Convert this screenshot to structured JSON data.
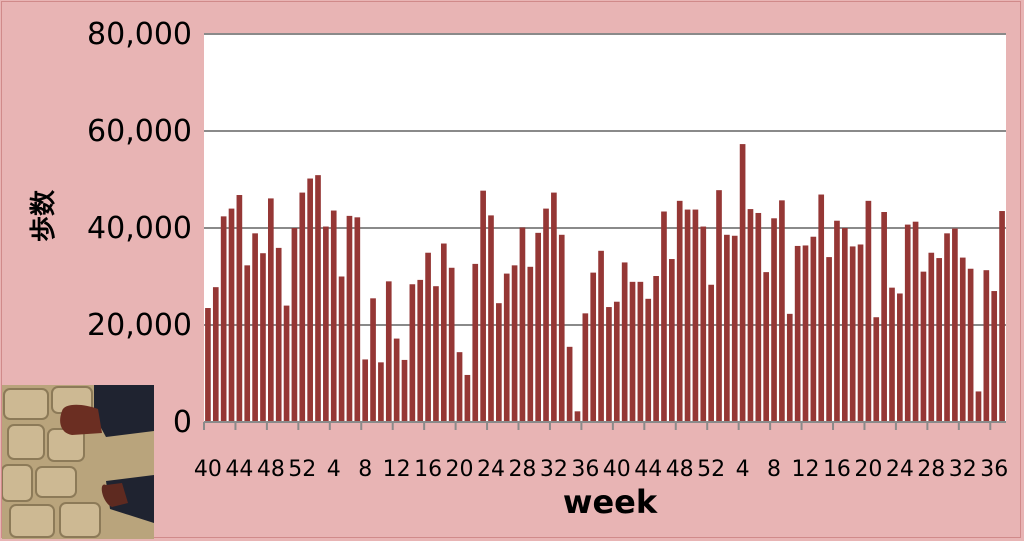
{
  "chart_data": {
    "type": "bar",
    "xlabel": "week",
    "ylabel": "歩数",
    "ylim": [
      0,
      80000
    ],
    "yticks": [
      0,
      20000,
      40000,
      60000,
      80000
    ],
    "ytick_labels": [
      "0",
      "20,000",
      "40,000",
      "60,000",
      "80,000"
    ],
    "xtick_labels": [
      "40",
      "44",
      "48",
      "52",
      "4",
      "8",
      "12",
      "16",
      "20",
      "24",
      "28",
      "32",
      "36",
      "40",
      "44",
      "48",
      "52",
      "4",
      "8",
      "12",
      "16",
      "20",
      "24",
      "28",
      "32",
      "36"
    ],
    "grid": true,
    "bar_color": "#953735",
    "plot_background": "#ffffff",
    "values": [
      23500,
      27800,
      42400,
      44000,
      46800,
      32300,
      38900,
      34800,
      46100,
      35900,
      24000,
      40000,
      47300,
      50200,
      50900,
      40300,
      43600,
      30000,
      42500,
      42200,
      12900,
      25500,
      12300,
      29000,
      17200,
      12800,
      28400,
      29300,
      34900,
      28000,
      36800,
      31800,
      14400,
      9700,
      32600,
      47700,
      42600,
      24500,
      30600,
      32300,
      40100,
      32000,
      39000,
      44000,
      47300,
      38600,
      15500,
      2200,
      22400,
      30800,
      35300,
      23700,
      24800,
      32900,
      28900,
      28900,
      25400,
      30100,
      43400,
      33600,
      45600,
      43800,
      43800,
      40300,
      28300,
      47800,
      38600,
      38400,
      57300,
      43900,
      43100,
      30900,
      42000,
      45700,
      22300,
      36300,
      36400,
      38200,
      46900,
      34000,
      41500,
      40000,
      36200,
      36600,
      45600,
      21600,
      43300,
      27700,
      26500,
      40700,
      41300,
      31000,
      34900,
      33800,
      38900,
      39900,
      33900,
      31600,
      6300,
      31300,
      27000,
      43500
    ]
  },
  "photo": {
    "icon": "shoes-on-pavement-photo"
  }
}
